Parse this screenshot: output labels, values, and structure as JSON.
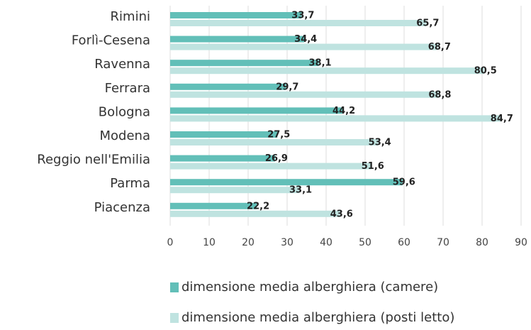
{
  "chart_data": {
    "type": "barh",
    "categories": [
      "Rimini",
      "Forlì-Cesena",
      "Ravenna",
      "Ferrara",
      "Bologna",
      "Modena",
      "Reggio nell'Emilia",
      "Parma",
      "Piacenza"
    ],
    "series": [
      {
        "name": "dimensione media alberghiera (camere)",
        "color": "#62bfb8",
        "values": [
          33.7,
          34.4,
          38.1,
          29.7,
          44.2,
          27.5,
          26.9,
          59.6,
          22.2
        ],
        "value_labels": [
          "33,7",
          "34,4",
          "38,1",
          "29,7",
          "44,2",
          "27,5",
          "26,9",
          "59,6",
          "22,2"
        ]
      },
      {
        "name": "dimensione media alberghiera (posti letto)",
        "color": "#bfe3e0",
        "values": [
          65.7,
          68.7,
          80.5,
          68.8,
          84.7,
          53.4,
          51.6,
          33.1,
          43.6
        ],
        "value_labels": [
          "65,7",
          "68,7",
          "80,5",
          "68,8",
          "84,7",
          "53,4",
          "51,6",
          "33,1",
          "43,6"
        ]
      }
    ],
    "xlim": [
      0,
      90
    ],
    "xticks": [
      0,
      10,
      20,
      30,
      40,
      50,
      60,
      70,
      80,
      90
    ],
    "grid": true
  }
}
